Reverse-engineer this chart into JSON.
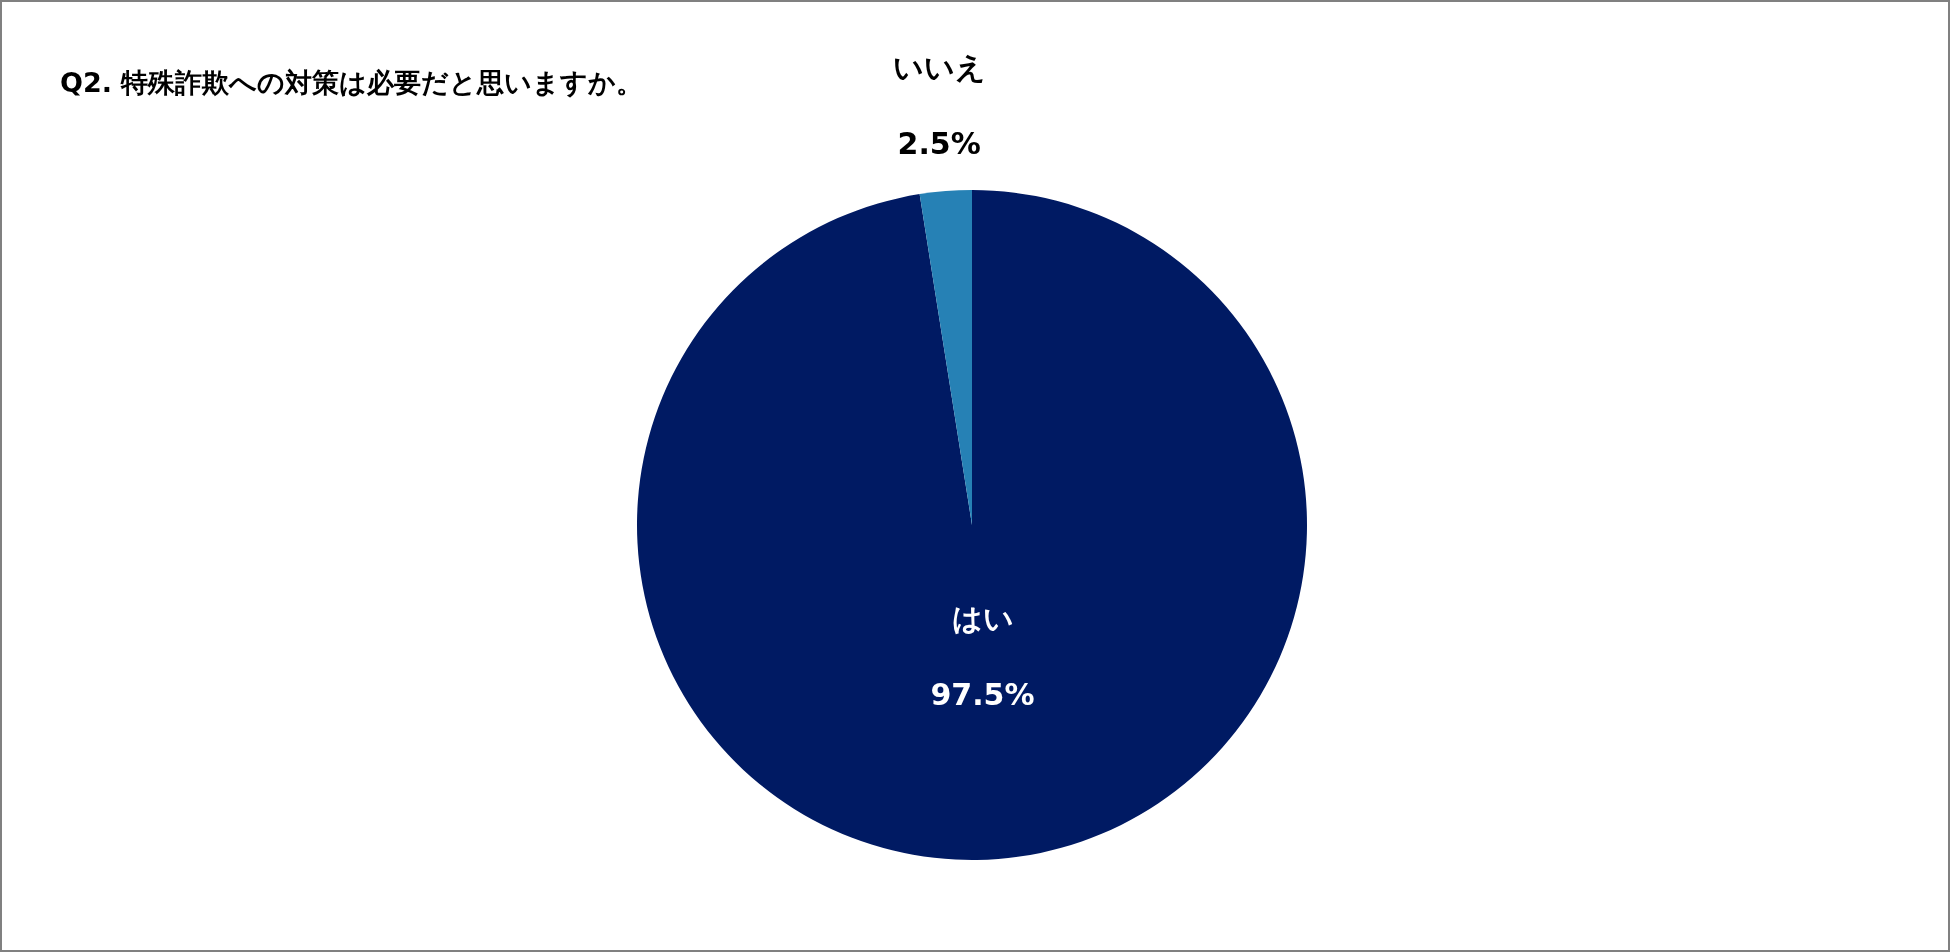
{
  "chart_data": {
    "type": "pie",
    "title": "Q2. 特殊詐欺への対策は必要だと思いますか。",
    "categories": [
      "はい",
      "いいえ"
    ],
    "values": [
      97.5,
      2.5
    ],
    "value_labels": [
      "97.5%",
      "2.5%"
    ],
    "colors": [
      "#001a63",
      "#2681b5"
    ]
  }
}
